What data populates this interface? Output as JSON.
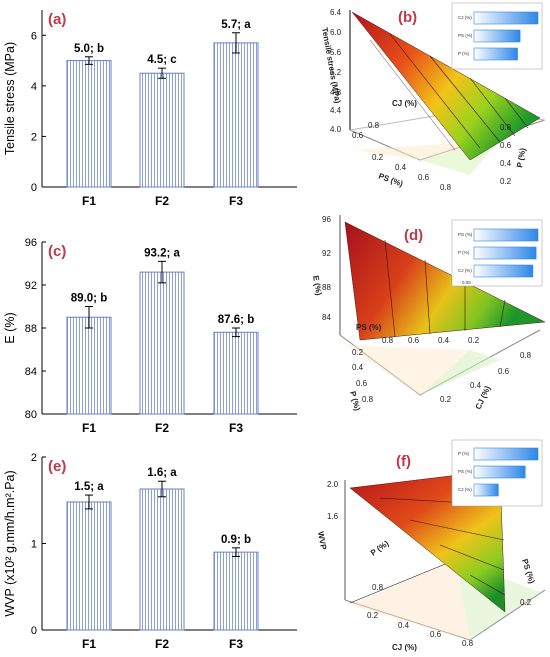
{
  "chart_data": [
    {
      "panel": "(a)",
      "type": "bar",
      "categories": [
        "F1",
        "F2",
        "F3"
      ],
      "values": [
        5.0,
        4.5,
        5.7
      ],
      "errors": [
        0.15,
        0.2,
        0.4
      ],
      "value_labels": [
        "5.0; b",
        "4.5; c",
        "5.7; a"
      ],
      "ylabel": "Tensile stress (MPa)",
      "ylim": [
        0,
        7
      ],
      "yticks": [
        "0",
        "2",
        "4",
        "6"
      ]
    },
    {
      "panel": "(b)",
      "type": "surface",
      "zlabel": "Tensile stress (MPa)",
      "axis_labels": [
        "CJ (%)",
        "PS (%)",
        "P (%)"
      ],
      "z_ticks": [
        "4.0",
        "4.4",
        "4.8",
        "5.2",
        "5.6",
        "6.0",
        "6.4"
      ],
      "ps_ticks": [
        "0.2",
        "0.4",
        "0.6",
        "0.8"
      ],
      "cj_ticks": [
        "0.8",
        "0.6"
      ],
      "p_ticks": [
        "0.8",
        "0.6",
        "0.4",
        "0.2"
      ],
      "legend": [
        {
          "name": "CJ (%)",
          "value": 1.0
        },
        {
          "name": "PS (%)",
          "value": 0.72
        },
        {
          "name": "P (%)",
          "value": 0.68
        }
      ]
    },
    {
      "panel": "(c)",
      "type": "bar",
      "categories": [
        "F1",
        "F2",
        "F3"
      ],
      "values": [
        89.0,
        93.2,
        87.6
      ],
      "errors": [
        1.0,
        1.0,
        0.4
      ],
      "value_labels": [
        "89.0; b",
        "93.2; a",
        "87.6; b"
      ],
      "ylabel": "E (%)",
      "ylim": [
        80,
        96
      ],
      "yticks": [
        "80",
        "84",
        "88",
        "92",
        "96"
      ]
    },
    {
      "panel": "(d)",
      "type": "surface",
      "zlabel": "E (%)",
      "axis_labels": [
        "PS (%)",
        "P (%)",
        "CJ (%)"
      ],
      "z_ticks": [
        "84",
        "88",
        "92",
        "96"
      ],
      "ps_ticks": [
        "0.8",
        "0.6",
        "0.4",
        "0.2"
      ],
      "p_ticks": [
        "0.2",
        "0.4",
        "0.6",
        "0.8"
      ],
      "cj_ticks": [
        "0.2",
        "0.4",
        "0.6",
        "0.8"
      ],
      "legend_tick": "0.05",
      "legend": [
        {
          "name": "PS (%)",
          "value": 1.0
        },
        {
          "name": "P (%)",
          "value": 0.97
        },
        {
          "name": "CJ (%)",
          "value": 0.92
        }
      ]
    },
    {
      "panel": "(e)",
      "type": "bar",
      "categories": [
        "F1",
        "F2",
        "F3"
      ],
      "values": [
        1.48,
        1.63,
        0.9
      ],
      "errors": [
        0.08,
        0.09,
        0.05
      ],
      "value_labels": [
        "1.5; a",
        "1.6; a",
        "0.9; b"
      ],
      "ylabel": "WVP (x10² g.mm/h.m².Pa)",
      "ylim": [
        0,
        2
      ],
      "yticks": [
        "0",
        "1",
        "2"
      ]
    },
    {
      "panel": "(f)",
      "type": "surface",
      "zlabel": "WVP",
      "axis_labels": [
        "P (%)",
        "PS (%)",
        "CJ (%)"
      ],
      "z_ticks": [
        "1.6",
        "2.0"
      ],
      "p_ticks": [
        "0.8"
      ],
      "ps_ticks": [
        "0.2"
      ],
      "cj_ticks": [
        "0.2",
        "0.4",
        "0.6",
        "0.8"
      ],
      "legend": [
        {
          "name": "P (%)",
          "value": 1.0
        },
        {
          "name": "PS (%)",
          "value": 0.8
        },
        {
          "name": "CJ (%)",
          "value": 0.38
        }
      ]
    }
  ]
}
